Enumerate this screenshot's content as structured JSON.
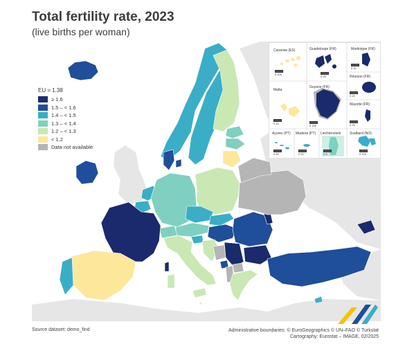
{
  "title": "Total fertility rate, 2023",
  "subtitle": "(live births per woman)",
  "legend": {
    "eu_label": "EU = 1.38",
    "classes": [
      {
        "label": "≥ 1.6",
        "color": "#1a2a6c"
      },
      {
        "label": "1.5 – < 1.6",
        "color": "#1f4e9a"
      },
      {
        "label": "1.4 – < 1.5",
        "color": "#3aaec6"
      },
      {
        "label": "1.3 – < 1.4",
        "color": "#7fd0c0"
      },
      {
        "label": "1.2 – < 1.3",
        "color": "#c9e8b3"
      },
      {
        "label": "< 1.2",
        "color": "#fde79b"
      },
      {
        "label": "Data not available",
        "color": "#b5b5b5"
      }
    ]
  },
  "insets": {
    "canarias": "Canarias (ES)",
    "guadeloupe": "Guadeloupe (FR)",
    "martinique": "Martinique (FR)",
    "reunion": "Réunion (FR)",
    "malta": "Malta",
    "guyane": "Guyane (FR)",
    "mayotte": "Mayotte (FR)",
    "acores": "Açores (PT)",
    "madeira": "Madeira (PT)",
    "liechtenstein": "Liechtenstein",
    "svalbard": "Svalbard (NO)",
    "scale_canarias": "0  100",
    "scale_guadeloupe": "0  25",
    "scale_martinique": "0  20",
    "scale_reunion": "0  20",
    "scale_malta": "0  10",
    "scale_guyane": "0  100",
    "scale_mayotte": "0  15",
    "scale_acores": "0  50",
    "scale_madeira": "0  20",
    "scale_liechtenstein": "0  5",
    "scale_svalbard": "0  100"
  },
  "footer": {
    "source": "Source dataset: demo_find",
    "admin": "Administrative boundaries: © EuroGeographics © UN–FAO © Turkstat",
    "cartography": "Cartography: Eurostat – IMAGE, 02/2025"
  },
  "colors": {
    "sea": "#ffffff",
    "non_eu_land": "#e6e6e6",
    "border": "#ffffff"
  }
}
